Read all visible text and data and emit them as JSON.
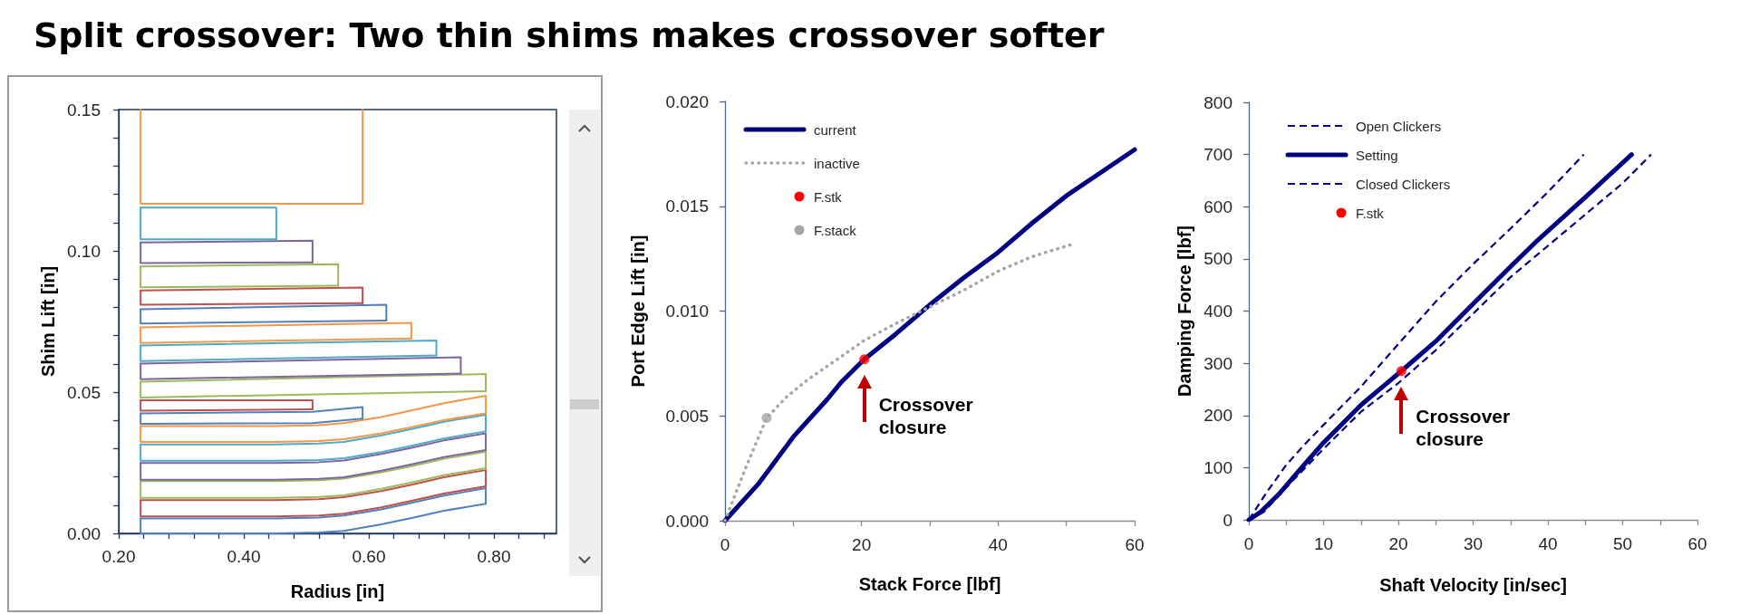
{
  "chart_data": [
    {
      "type": "line",
      "title": "Split crossover: Two thin shims makes crossover softer",
      "xlabel": "Radius [in]",
      "ylabel": "Shim Lift [in]",
      "xlim": [
        0.2,
        0.9
      ],
      "ylim": [
        0,
        0.15
      ],
      "xticks": [
        {
          "value": 0.2,
          "label": "0.20"
        },
        {
          "value": 0.24,
          "label": null
        },
        {
          "value": 0.28,
          "label": null
        },
        {
          "value": 0.32,
          "label": null
        },
        {
          "value": 0.36,
          "label": null
        },
        {
          "value": 0.4,
          "label": "0.40"
        },
        {
          "value": 0.44,
          "label": null
        },
        {
          "value": 0.48,
          "label": null
        },
        {
          "value": 0.52,
          "label": null
        },
        {
          "value": 0.56,
          "label": null
        },
        {
          "value": 0.6,
          "label": "0.60"
        },
        {
          "value": 0.64,
          "label": null
        },
        {
          "value": 0.68,
          "label": null
        },
        {
          "value": 0.72,
          "label": null
        },
        {
          "value": 0.76,
          "label": null
        },
        {
          "value": 0.8,
          "label": "0.80"
        },
        {
          "value": 0.84,
          "label": null
        },
        {
          "value": 0.88,
          "label": null
        }
      ],
      "yticks": [
        {
          "value": 0,
          "label": "0.00"
        },
        {
          "value": 0.01,
          "label": null
        },
        {
          "value": 0.02,
          "label": null
        },
        {
          "value": 0.03,
          "label": null
        },
        {
          "value": 0.04,
          "label": null
        },
        {
          "value": 0.05,
          "label": "0.05"
        },
        {
          "value": 0.06,
          "label": null
        },
        {
          "value": 0.07,
          "label": null
        },
        {
          "value": 0.08,
          "label": null
        },
        {
          "value": 0.09,
          "label": null
        },
        {
          "value": 0.1,
          "label": "0.10"
        },
        {
          "value": 0.11,
          "label": null
        },
        {
          "value": 0.12,
          "label": null
        },
        {
          "value": 0.13,
          "label": null
        },
        {
          "value": 0.14,
          "label": null
        },
        {
          "value": 0.15,
          "label": "0.15"
        }
      ],
      "series": [
        {
          "color": "#4f81bd",
          "x": [
            0.235,
            0.235,
            0.45,
            0.52,
            0.56,
            0.62,
            0.67,
            0.72,
            0.787
          ],
          "values": [
            0.0053,
            0,
            0,
            0.0003,
            0.0009,
            0.0032,
            0.0055,
            0.008,
            0.0105
          ]
        },
        {
          "color": "#4f81bd",
          "x": [
            0.235,
            0.45,
            0.52,
            0.56,
            0.62,
            0.67,
            0.72,
            0.787,
            0.787
          ],
          "values": [
            0.0053,
            0.0053,
            0.0056,
            0.0063,
            0.0085,
            0.0109,
            0.0134,
            0.016,
            0.0105
          ]
        },
        {
          "color": "#c0504d",
          "x": [
            0.235,
            0.235,
            0.45,
            0.52,
            0.56,
            0.62,
            0.67,
            0.72,
            0.787
          ],
          "values": [
            0.0118,
            0.006,
            0.006,
            0.0063,
            0.007,
            0.0092,
            0.0116,
            0.0141,
            0.0167
          ]
        },
        {
          "color": "#c0504d",
          "x": [
            0.235,
            0.45,
            0.52,
            0.56,
            0.62,
            0.67,
            0.72,
            0.787,
            0.787
          ],
          "values": [
            0.0118,
            0.0118,
            0.0121,
            0.0128,
            0.015,
            0.0173,
            0.0199,
            0.0224,
            0.0167
          ]
        },
        {
          "color": "#9bbb59",
          "x": [
            0.235,
            0.235,
            0.45,
            0.52,
            0.56,
            0.62,
            0.67,
            0.72,
            0.787
          ],
          "values": [
            0.0185,
            0.0126,
            0.0126,
            0.0129,
            0.0135,
            0.0158,
            0.0181,
            0.0206,
            0.0231
          ]
        },
        {
          "color": "#9bbb59",
          "x": [
            0.235,
            0.45,
            0.52,
            0.56,
            0.62,
            0.67,
            0.72,
            0.787,
            0.787
          ],
          "values": [
            0.0185,
            0.0185,
            0.0188,
            0.0194,
            0.0216,
            0.0239,
            0.0264,
            0.0289,
            0.0231
          ]
        },
        {
          "color": "#8064a2",
          "x": [
            0.235,
            0.235,
            0.45,
            0.52,
            0.56,
            0.62,
            0.67,
            0.72,
            0.787
          ],
          "values": [
            0.0249,
            0.019,
            0.019,
            0.0193,
            0.0199,
            0.0222,
            0.0245,
            0.027,
            0.0295
          ]
        },
        {
          "color": "#8064a2",
          "x": [
            0.235,
            0.45,
            0.52,
            0.56,
            0.62,
            0.67,
            0.72,
            0.787,
            0.787
          ],
          "values": [
            0.0249,
            0.0249,
            0.0252,
            0.0258,
            0.0281,
            0.0304,
            0.0329,
            0.0354,
            0.0295
          ]
        },
        {
          "color": "#4bacc6",
          "x": [
            0.235,
            0.235,
            0.45,
            0.52,
            0.56,
            0.62,
            0.67,
            0.72,
            0.787
          ],
          "values": [
            0.0315,
            0.0257,
            0.0257,
            0.026,
            0.0266,
            0.0288,
            0.0311,
            0.0336,
            0.0361
          ]
        },
        {
          "color": "#4bacc6",
          "x": [
            0.235,
            0.45,
            0.52,
            0.56,
            0.62,
            0.67,
            0.72,
            0.787,
            0.787
          ],
          "values": [
            0.0315,
            0.0315,
            0.0318,
            0.0324,
            0.0347,
            0.037,
            0.0395,
            0.042,
            0.0361
          ]
        },
        {
          "color": "#f79646",
          "x": [
            0.235,
            0.235,
            0.45,
            0.52,
            0.56,
            0.62,
            0.67,
            0.72,
            0.787
          ],
          "values": [
            0.038,
            0.0324,
            0.0324,
            0.0327,
            0.0333,
            0.0354,
            0.0377,
            0.0401,
            0.0425
          ]
        },
        {
          "color": "#f79646",
          "x": [
            0.235,
            0.45,
            0.52,
            0.56,
            0.62,
            0.67,
            0.72,
            0.787,
            0.787
          ],
          "values": [
            0.038,
            0.038,
            0.0383,
            0.039,
            0.0412,
            0.0436,
            0.0461,
            0.0487,
            0.0425
          ]
        },
        {
          "color": "#4f81bd",
          "x": [
            0.235,
            0.235,
            0.51,
            0.59
          ],
          "values": [
            0.0425,
            0.0388,
            0.039,
            0.0406
          ]
        },
        {
          "color": "#4f81bd",
          "x": [
            0.235,
            0.51,
            0.59,
            0.59
          ],
          "values": [
            0.0425,
            0.043,
            0.0447,
            0.0406
          ]
        },
        {
          "color": "#c0504d",
          "x": [
            0.235,
            0.235,
            0.51
          ],
          "values": [
            0.0471,
            0.0434,
            0.0439
          ]
        },
        {
          "color": "#c0504d",
          "x": [
            0.235,
            0.51,
            0.51
          ],
          "values": [
            0.0471,
            0.0471,
            0.0439
          ]
        },
        {
          "color": "#9bbb59",
          "x": [
            0.235,
            0.235,
            0.787
          ],
          "values": [
            0.0537,
            0.0481,
            0.0503
          ]
        },
        {
          "color": "#9bbb59",
          "x": [
            0.235,
            0.787,
            0.787
          ],
          "values": [
            0.0537,
            0.0564,
            0.0503
          ]
        },
        {
          "color": "#8064a2",
          "x": [
            0.235,
            0.235,
            0.747
          ],
          "values": [
            0.0601,
            0.0546,
            0.0566
          ]
        },
        {
          "color": "#8064a2",
          "x": [
            0.235,
            0.747,
            0.747
          ],
          "values": [
            0.0601,
            0.0623,
            0.0566
          ]
        },
        {
          "color": "#4bacc6",
          "x": [
            0.235,
            0.235,
            0.708
          ],
          "values": [
            0.0665,
            0.061,
            0.063
          ]
        },
        {
          "color": "#4bacc6",
          "x": [
            0.235,
            0.708,
            0.708
          ],
          "values": [
            0.0665,
            0.0683,
            0.063
          ]
        },
        {
          "color": "#f79646",
          "x": [
            0.235,
            0.235,
            0.668
          ],
          "values": [
            0.0729,
            0.0674,
            0.069
          ]
        },
        {
          "color": "#f79646",
          "x": [
            0.235,
            0.668,
            0.668
          ],
          "values": [
            0.0729,
            0.0745,
            0.069
          ]
        },
        {
          "color": "#4f81bd",
          "x": [
            0.235,
            0.235,
            0.628
          ],
          "values": [
            0.0793,
            0.0743,
            0.0753
          ]
        },
        {
          "color": "#4f81bd",
          "x": [
            0.235,
            0.628,
            0.628
          ],
          "values": [
            0.0793,
            0.0809,
            0.0753
          ]
        },
        {
          "color": "#c0504d",
          "x": [
            0.235,
            0.235,
            0.59
          ],
          "values": [
            0.086,
            0.0809,
            0.0815
          ]
        },
        {
          "color": "#c0504d",
          "x": [
            0.235,
            0.59,
            0.59
          ],
          "values": [
            0.086,
            0.087,
            0.0815
          ]
        },
        {
          "color": "#9bbb59",
          "x": [
            0.235,
            0.235,
            0.551
          ],
          "values": [
            0.0945,
            0.0871,
            0.0877
          ]
        },
        {
          "color": "#9bbb59",
          "x": [
            0.235,
            0.551,
            0.551
          ],
          "values": [
            0.0945,
            0.0953,
            0.0877
          ]
        },
        {
          "color": "#8064a2",
          "x": [
            0.235,
            0.235,
            0.51
          ],
          "values": [
            0.103,
            0.0957,
            0.0959
          ]
        },
        {
          "color": "#8064a2",
          "x": [
            0.235,
            0.51,
            0.51
          ],
          "values": [
            0.103,
            0.1036,
            0.0959
          ]
        },
        {
          "color": "#4bacc6",
          "x": [
            0.235,
            0.235,
            0.452
          ],
          "values": [
            0.1153,
            0.1041,
            0.1041
          ]
        },
        {
          "color": "#4bacc6",
          "x": [
            0.235,
            0.452,
            0.452
          ],
          "values": [
            0.1153,
            0.1153,
            0.1041
          ]
        },
        {
          "color": "#f79646",
          "x": [
            0.235,
            0.235,
            0.59,
            0.59
          ],
          "values": [
            0.15,
            0.1167,
            0.1167,
            0.15
          ]
        }
      ]
    },
    {
      "type": "line",
      "xlabel": "Stack Force [lbf]",
      "ylabel": "Port Edge Lift [in]",
      "xlim": [
        0,
        60
      ],
      "ylim": [
        0,
        0.02
      ],
      "xticks": [
        0,
        {
          "value": 10,
          "label": null
        },
        20,
        {
          "value": 30,
          "label": null
        },
        40,
        {
          "value": 50,
          "label": null
        },
        60
      ],
      "yticks": [
        {
          "value": 0,
          "label": "0.000"
        },
        {
          "value": 0.005,
          "label": "0.005"
        },
        {
          "value": 0.01,
          "label": "0.010"
        },
        {
          "value": 0.015,
          "label": "0.015"
        },
        {
          "value": 0.02,
          "label": "0.020"
        }
      ],
      "legend": "top left",
      "annotations": [
        {
          "text": "Crossover closure",
          "x": 20.4,
          "y": 0.0077
        }
      ],
      "series": [
        {
          "name": "current",
          "color": "#000080",
          "line_style": "solid",
          "x": [
            0,
            5,
            10,
            15,
            17,
            20.4,
            25,
            30,
            35,
            40,
            45,
            50,
            55,
            60
          ],
          "values": [
            0,
            0.0018,
            0.004,
            0.0058,
            0.0066,
            0.0077,
            0.0089,
            0.0103,
            0.0116,
            0.0128,
            0.0142,
            0.0155,
            0.0166,
            0.0177
          ]
        },
        {
          "name": "inactive",
          "color": "#a6a6a6",
          "line_style": "dotted",
          "x": [
            0,
            3,
            6.1,
            9,
            12,
            16,
            20.4,
            25,
            30,
            35,
            40,
            45,
            51
          ],
          "values": [
            0,
            0.0025,
            0.0049,
            0.0059,
            0.0067,
            0.0076,
            0.0086,
            0.0094,
            0.0102,
            0.011,
            0.0119,
            0.0126,
            0.0132
          ]
        },
        {
          "name": "F.stk",
          "type": "scatter",
          "marker": "circle",
          "color": "#ff0000",
          "x": [
            20.4
          ],
          "values": [
            0.0077
          ]
        },
        {
          "name": "F.stack",
          "type": "scatter",
          "marker": "circle",
          "color": "#a6a6a6",
          "x": [
            6.1
          ],
          "values": [
            0.0049
          ]
        }
      ]
    },
    {
      "type": "line",
      "xlabel": "Shaft Velocity [in/sec]",
      "ylabel": "Damping Force [lbf]",
      "xlim": [
        0,
        60
      ],
      "ylim": [
        0,
        800
      ],
      "xticks": [
        0,
        {
          "value": 5,
          "label": null
        },
        10,
        {
          "value": 15,
          "label": null
        },
        20,
        {
          "value": 25,
          "label": null
        },
        30,
        {
          "value": 35,
          "label": null
        },
        40,
        {
          "value": 45,
          "label": null
        },
        50,
        {
          "value": 55,
          "label": null
        },
        60
      ],
      "yticks": [
        0,
        100,
        200,
        300,
        400,
        500,
        600,
        700,
        800
      ],
      "legend": "top left",
      "annotations": [
        {
          "text": "Crossover closure",
          "x": 20.4,
          "y": 285
        }
      ],
      "series": [
        {
          "name": "Open Clickers",
          "color": "#000080",
          "line_style": "dashed",
          "x": [
            0,
            1,
            2.5,
            5,
            7.5,
            10,
            15,
            20,
            25,
            30,
            35,
            40,
            44.8
          ],
          "values": [
            0,
            22,
            55,
            105,
            145,
            182,
            255,
            337,
            418,
            490,
            558,
            628,
            700
          ]
        },
        {
          "name": "Setting",
          "color": "#000080",
          "line_style": "solid",
          "x": [
            0,
            1.5,
            4,
            6.7,
            10,
            15,
            20.4,
            25,
            30,
            35,
            38.5,
            45,
            51.2
          ],
          "values": [
            0,
            14,
            49,
            94,
            148,
            220,
            285,
            342,
            414,
            485,
            534,
            618,
            700
          ]
        },
        {
          "name": "Closed Clickers",
          "color": "#000080",
          "line_style": "dashed",
          "x": [
            0,
            2,
            5,
            10,
            15,
            20,
            25,
            30,
            35,
            40,
            45,
            50,
            53.8
          ],
          "values": [
            0,
            15,
            62,
            136,
            207,
            262,
            325,
            395,
            465,
            525,
            585,
            645,
            700
          ]
        },
        {
          "name": "F.stk",
          "type": "scatter",
          "marker": "circle",
          "color": "#ff0000",
          "x": [
            20.4
          ],
          "values": [
            285
          ]
        }
      ]
    }
  ]
}
